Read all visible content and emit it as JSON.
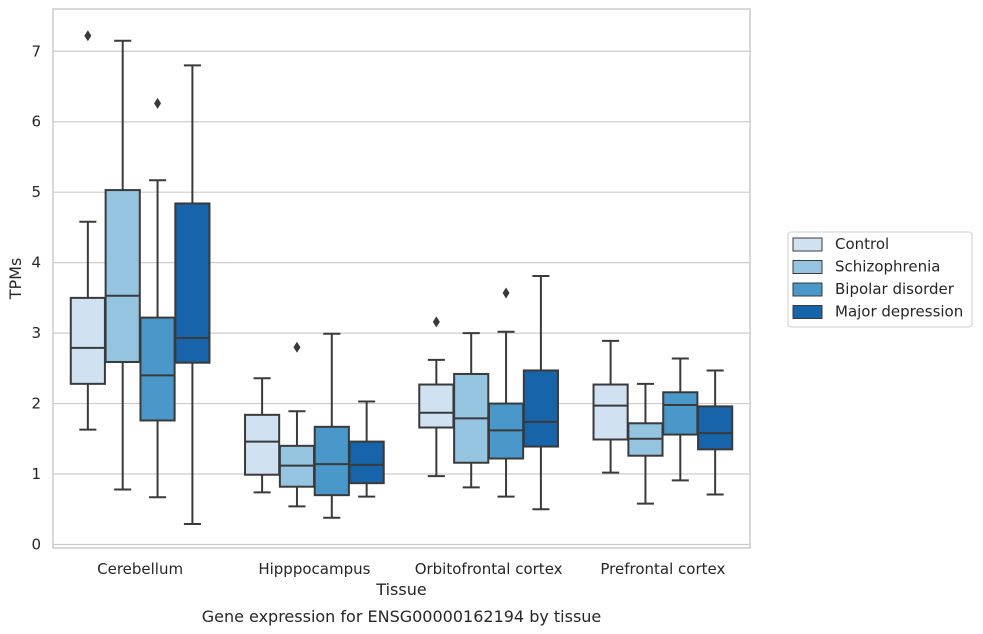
{
  "chart_data": {
    "type": "boxplot",
    "caption": "Gene expression for ENSG00000162194 by tissue",
    "xlabel": "Tissue",
    "ylabel": "TPMs",
    "ylim": [
      -0.05,
      7.6
    ],
    "yticks": [
      0,
      1,
      2,
      3,
      4,
      5,
      6,
      7
    ],
    "grid": "horizontal",
    "legend_position": "right",
    "categories": [
      "Cerebellum",
      "Hipppocampus",
      "Orbitofrontal cortex",
      "Prefrontal cortex"
    ],
    "series": [
      {
        "name": "Control",
        "color": "#d0e1f2",
        "boxes": [
          {
            "whislo": 1.63,
            "q1": 2.28,
            "med": 2.79,
            "q3": 3.5,
            "whishi": 4.58,
            "fliers": [
              7.22
            ]
          },
          {
            "whislo": 0.74,
            "q1": 0.99,
            "med": 1.46,
            "q3": 1.84,
            "whishi": 2.36,
            "fliers": []
          },
          {
            "whislo": 0.97,
            "q1": 1.66,
            "med": 1.87,
            "q3": 2.27,
            "whishi": 2.62,
            "fliers": [
              3.16
            ]
          },
          {
            "whislo": 1.02,
            "q1": 1.49,
            "med": 1.97,
            "q3": 2.27,
            "whishi": 2.89,
            "fliers": []
          }
        ]
      },
      {
        "name": "Schizophrenia",
        "color": "#94c4df",
        "boxes": [
          {
            "whislo": 0.78,
            "q1": 2.59,
            "med": 3.53,
            "q3": 5.03,
            "whishi": 7.15,
            "fliers": []
          },
          {
            "whislo": 0.54,
            "q1": 0.82,
            "med": 1.12,
            "q3": 1.4,
            "whishi": 1.89,
            "fliers": [
              2.8
            ]
          },
          {
            "whislo": 0.81,
            "q1": 1.16,
            "med": 1.79,
            "q3": 2.42,
            "whishi": 3.0,
            "fliers": []
          },
          {
            "whislo": 0.58,
            "q1": 1.26,
            "med": 1.5,
            "q3": 1.72,
            "whishi": 2.28,
            "fliers": []
          }
        ]
      },
      {
        "name": "Bipolar disorder",
        "color": "#4a98c9",
        "boxes": [
          {
            "whislo": 0.67,
            "q1": 1.76,
            "med": 2.4,
            "q3": 3.22,
            "whishi": 5.17,
            "fliers": [
              6.26
            ]
          },
          {
            "whislo": 0.38,
            "q1": 0.7,
            "med": 1.14,
            "q3": 1.67,
            "whishi": 2.99,
            "fliers": []
          },
          {
            "whislo": 0.68,
            "q1": 1.22,
            "med": 1.62,
            "q3": 2.0,
            "whishi": 3.02,
            "fliers": [
              3.57
            ]
          },
          {
            "whislo": 0.91,
            "q1": 1.56,
            "med": 1.98,
            "q3": 2.16,
            "whishi": 2.64,
            "fliers": []
          }
        ]
      },
      {
        "name": "Major depression",
        "color": "#1764ab",
        "boxes": [
          {
            "whislo": 0.29,
            "q1": 2.58,
            "med": 2.93,
            "q3": 4.84,
            "whishi": 6.8,
            "fliers": []
          },
          {
            "whislo": 0.68,
            "q1": 0.87,
            "med": 1.13,
            "q3": 1.46,
            "whishi": 2.03,
            "fliers": []
          },
          {
            "whislo": 0.5,
            "q1": 1.39,
            "med": 1.74,
            "q3": 2.47,
            "whishi": 3.81,
            "fliers": []
          },
          {
            "whislo": 0.71,
            "q1": 1.35,
            "med": 1.58,
            "q3": 1.96,
            "whishi": 2.47,
            "fliers": []
          }
        ]
      }
    ]
  }
}
